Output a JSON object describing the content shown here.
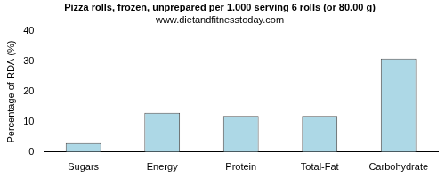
{
  "chart_data": {
    "type": "bar",
    "title": "Pizza rolls, frozen, unprepared per 1.000 serving 6 rolls (or 80.00 g)",
    "subtitle": "www.dietandfitnesstoday.com",
    "y_label": "Percentage of RDA (%)",
    "categories": [
      "Sugars",
      "Energy",
      "Protein",
      "Total-Fat",
      "Carbohydrate"
    ],
    "values": [
      3,
      13,
      12,
      12,
      31
    ],
    "color": "#add8e6",
    "ylim": [
      0,
      40
    ],
    "yticks": [
      0,
      10,
      20,
      30,
      40
    ],
    "grid": false
  }
}
